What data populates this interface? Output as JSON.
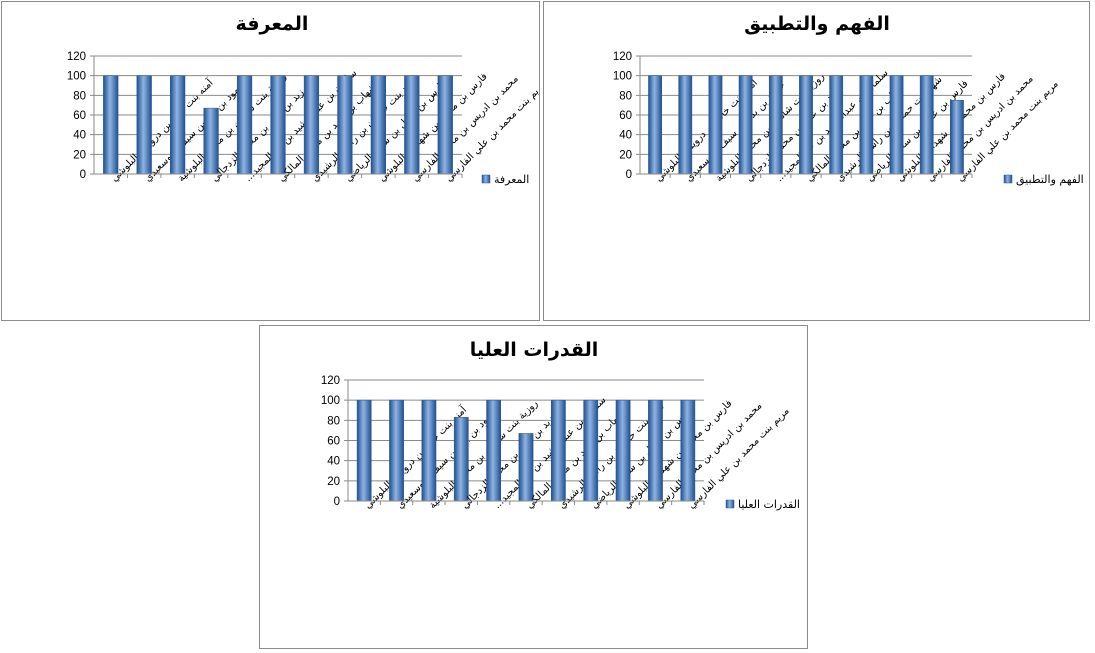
{
  "colors": {
    "bar_dark": "#1f4f8f",
    "bar_mid": "#4f81bd",
    "bar_light": "#8fb4e3",
    "border": "#8c8c8c"
  },
  "chart_data": [
    {
      "type": "bar",
      "title": "المعرفة",
      "legend": "المعرفة",
      "legend_position": "right",
      "grid": true,
      "ylim": [
        0,
        120
      ],
      "yticks": [
        "0",
        "20",
        "40",
        "60",
        "80",
        "100",
        "120"
      ],
      "categories": [
        "آمنه بنت خالد بن درويش البلوشي",
        "حمود بن بدر بن سيف البوسعيدي",
        "روزية بنت شاهين بن محمد البلوشية",
        "زيد بن عمر بن محمد الزدجالي",
        "سلمان بن عبدالرشيد بن عبدالمجيد...",
        "شهاب بن حمد بن محمد المالكي",
        "شهد بنت حمدان بن راشد الرشيدي",
        "فارس بن عقيل بن سعيد الرياضي",
        "فارس بن محمد بن شهدات البلوشي",
        "محمد بن ادريس بن محمد الفارسي",
        "مريم بنت محمد بن علي الفارسي"
      ],
      "values": [
        100,
        100,
        100,
        67,
        100,
        100,
        100,
        100,
        100,
        100,
        100
      ]
    },
    {
      "type": "bar",
      "title": "الفهم والتطبيق",
      "legend": "الفهم والتطبيق",
      "legend_position": "right",
      "grid": true,
      "ylim": [
        0,
        120
      ],
      "yticks": [
        "0",
        "20",
        "40",
        "60",
        "80",
        "100",
        "120"
      ],
      "categories": [
        "آمنه بنت خالد بن درويش البلوشي",
        "حمود بن بدر بن سيف البوسعيدي",
        "روزية بنت شاهين بن محمد البلوشية",
        "زيد بن عمر بن محمد الزدجالي",
        "سلمان بن عبدالرشيد بن عبدالمجيد...",
        "شهاب بن حمد بن محمد المالكي",
        "شهد بنت حمدان بن راشد الرشيدي",
        "فارس بن عقيل بن سعيد الرياضي",
        "فارس بن محمد بن شهدات البلوشي",
        "محمد بن ادريس بن محمد الفارسي",
        "مريم بنت محمد بن علي الفارسي"
      ],
      "values": [
        100,
        100,
        100,
        100,
        100,
        100,
        100,
        100,
        100,
        100,
        75
      ]
    },
    {
      "type": "bar",
      "title": "القدرات العليا",
      "legend": "القدرات العليا",
      "legend_position": "right",
      "grid": true,
      "ylim": [
        0,
        120
      ],
      "yticks": [
        "0",
        "20",
        "40",
        "60",
        "80",
        "100",
        "120"
      ],
      "categories": [
        "آمنه بنت خالد بن درويش البلوشي",
        "حمود بن بدر بن سيف البوسعيدي",
        "روزية بنت شاهين بن محمد البلوشية",
        "زيد بن عمر بن محمد الزدجالي",
        "سلمان بن عبدالرشيد بن عبدالمجيد...",
        "شهاب بن حمد بن محمد المالكي",
        "شهد بنت حمدان بن راشد الرشيدي",
        "فارس بن عقيل بن سعيد الرياضي",
        "فارس بن محمد بن شهدات البلوشي",
        "محمد بن ادريس بن محمد الفارسي",
        "مريم بنت محمد بن علي الفارسي"
      ],
      "values": [
        100,
        100,
        100,
        83,
        100,
        67,
        100,
        100,
        100,
        100,
        100
      ]
    }
  ]
}
